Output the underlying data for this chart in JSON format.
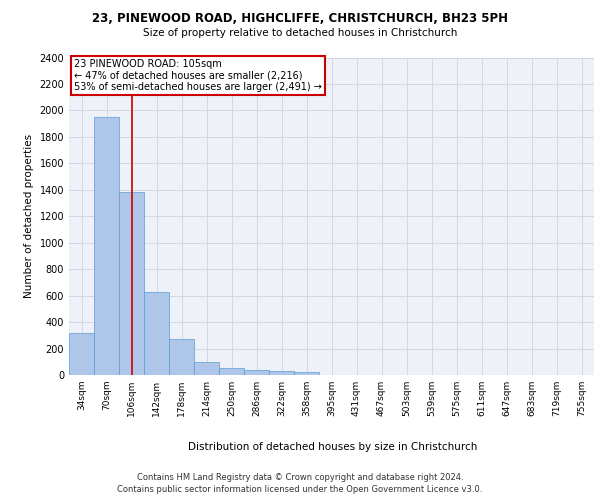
{
  "title1": "23, PINEWOOD ROAD, HIGHCLIFFE, CHRISTCHURCH, BH23 5PH",
  "title2": "Size of property relative to detached houses in Christchurch",
  "xlabel": "Distribution of detached houses by size in Christchurch",
  "ylabel": "Number of detached properties",
  "categories": [
    "34sqm",
    "70sqm",
    "106sqm",
    "142sqm",
    "178sqm",
    "214sqm",
    "250sqm",
    "286sqm",
    "322sqm",
    "358sqm",
    "395sqm",
    "431sqm",
    "467sqm",
    "503sqm",
    "539sqm",
    "575sqm",
    "611sqm",
    "647sqm",
    "683sqm",
    "719sqm",
    "755sqm"
  ],
  "bar_heights": [
    315,
    1950,
    1380,
    630,
    275,
    100,
    50,
    35,
    28,
    22,
    0,
    0,
    0,
    0,
    0,
    0,
    0,
    0,
    0,
    0,
    0
  ],
  "bar_color": "#aec6e8",
  "bar_edge_color": "#5b9bd5",
  "annotation_text_line1": "23 PINEWOOD ROAD: 105sqm",
  "annotation_text_line2": "← 47% of detached houses are smaller (2,216)",
  "annotation_text_line3": "53% of semi-detached houses are larger (2,491) →",
  "annotation_box_color": "#ffffff",
  "annotation_box_edge_color": "#cc0000",
  "vline_color": "#cc0000",
  "grid_color": "#d0d8e8",
  "background_color": "#eef2f8",
  "ylim": [
    0,
    2400
  ],
  "yticks": [
    0,
    200,
    400,
    600,
    800,
    1000,
    1200,
    1400,
    1600,
    1800,
    2000,
    2200,
    2400
  ],
  "footer_line1": "Contains HM Land Registry data © Crown copyright and database right 2024.",
  "footer_line2": "Contains public sector information licensed under the Open Government Licence v3.0."
}
